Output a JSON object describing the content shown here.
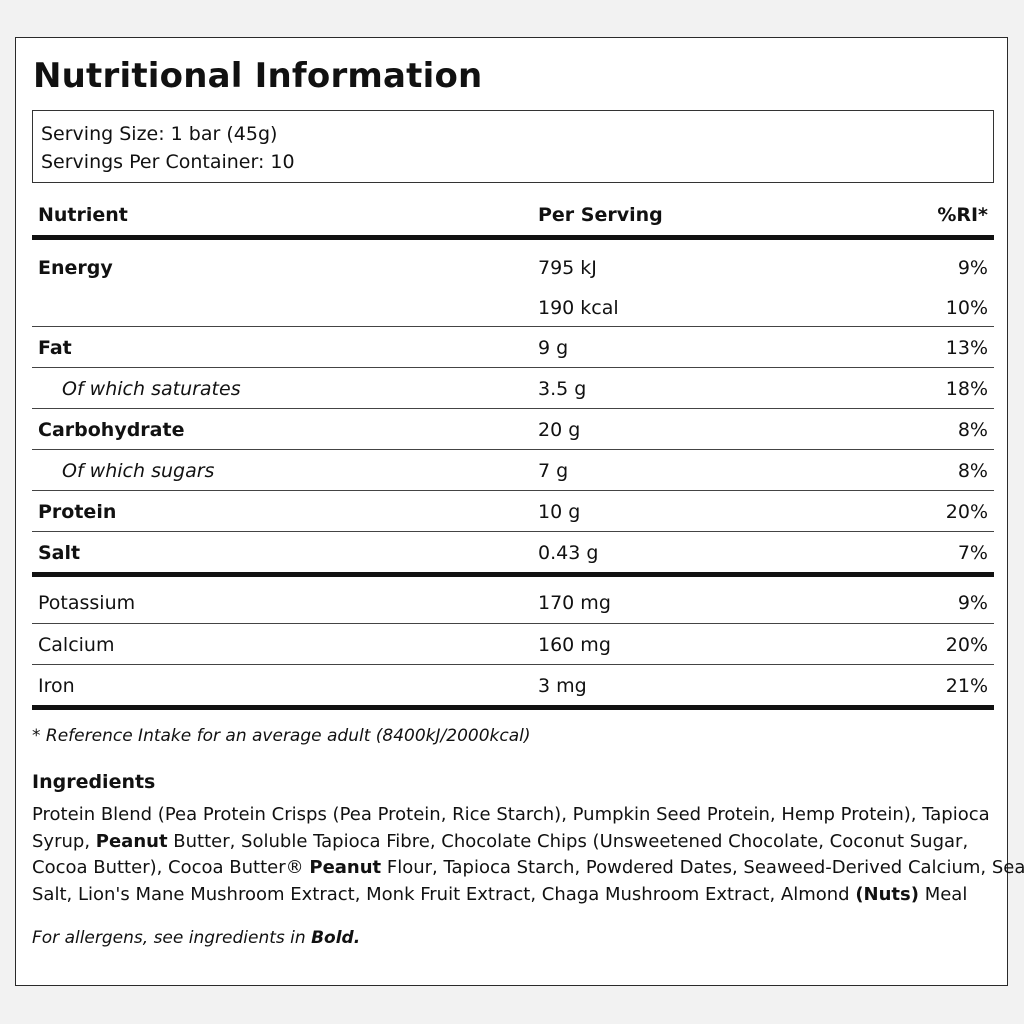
{
  "title": "Nutritional Information",
  "serving": {
    "size": "Serving Size: 1 bar (45g)",
    "per_container": "Servings Per Container: 10"
  },
  "table": {
    "headers": {
      "nutrient": "Nutrient",
      "per_serving": "Per Serving",
      "ri": "%RI*"
    },
    "rows": [
      {
        "nutrient": "Energy",
        "per_serving": "795 kJ",
        "ri": "9%"
      },
      {
        "nutrient": "",
        "per_serving": "190 kcal",
        "ri": "10%"
      },
      {
        "nutrient": "Fat",
        "per_serving": "9 g",
        "ri": "13%"
      },
      {
        "nutrient": "Of which saturates",
        "per_serving": "3.5 g",
        "ri": "18%"
      },
      {
        "nutrient": "Carbohydrate",
        "per_serving": "20 g",
        "ri": "8%"
      },
      {
        "nutrient": "Of which sugars",
        "per_serving": "7 g",
        "ri": "8%"
      },
      {
        "nutrient": "Protein",
        "per_serving": "10 g",
        "ri": "20%"
      },
      {
        "nutrient": "Salt",
        "per_serving": "0.43 g",
        "ri": "7%"
      },
      {
        "nutrient": "Potassium",
        "per_serving": "170 mg",
        "ri": "9%"
      },
      {
        "nutrient": "Calcium",
        "per_serving": "160 mg",
        "ri": "20%"
      },
      {
        "nutrient": "Iron",
        "per_serving": "3 mg",
        "ri": "21%"
      }
    ]
  },
  "footnote": "* Reference Intake for an average adult (8400kJ/2000kcal)",
  "ingredients": {
    "title": "Ingredients",
    "line1": "Protein Blend (Pea Protein Crisps (Pea Protein, Rice Starch), Pumpkin Seed Protein, Hemp Protein), Tapioca",
    "line2_a": "Syrup, ",
    "line2_bold": "Peanut",
    "line2_b": " Butter, Soluble Tapioca Fibre, Chocolate Chips (Unsweetened Chocolate, Coconut Sugar,",
    "line3_a": "Cocoa Butter), Cocoa Butter® ",
    "line3_bold": "Peanut",
    "line3_b": " Flour, Tapioca Starch, Powdered Dates, Seaweed-Derived Calcium, Sea",
    "line4_a": "Salt, Lion's Mane Mushroom Extract, Monk Fruit Extract, Chaga Mushroom Extract, Almond ",
    "line4_bold": "(Nuts)",
    "line4_b": " Meal"
  },
  "allergen": {
    "text": "For allergens, see ingredients in ",
    "bold": "Bold."
  }
}
